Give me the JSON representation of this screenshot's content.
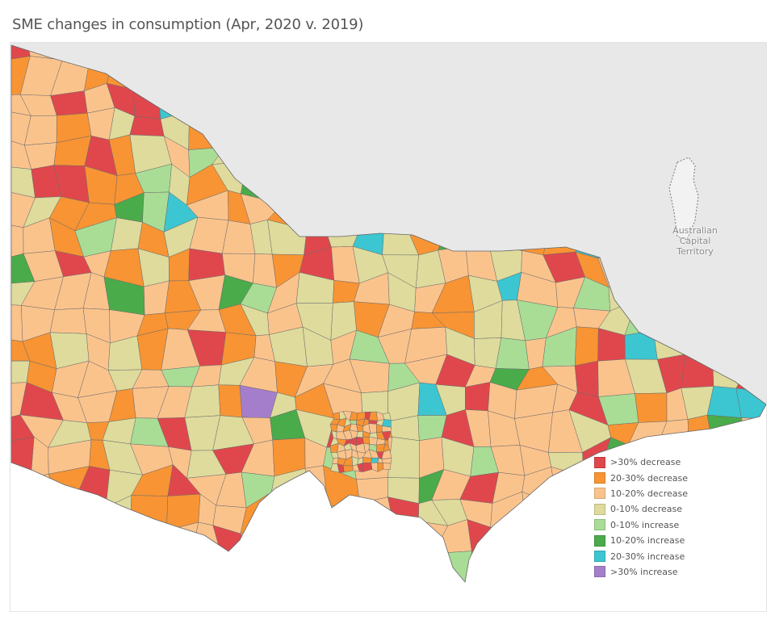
{
  "title": "SME changes in consumption (Apr, 2020 v. 2019)",
  "map": {
    "region_label": "Australian Capital Territory",
    "land_color": "#e8e8e8",
    "sea_color": "#ffffff"
  },
  "legend": {
    "items": [
      {
        "label": ">30% decrease",
        "color": "#e0474c"
      },
      {
        "label": "20-30% decrease",
        "color": "#f89433"
      },
      {
        "label": "10-20% decrease",
        "color": "#fbc38c"
      },
      {
        "label": "0-10% decrease",
        "color": "#dedb9c"
      },
      {
        "label": "0-10% increase",
        "color": "#a9dd96"
      },
      {
        "label": "10-20% increase",
        "color": "#4aab4a"
      },
      {
        "label": "20-30% increase",
        "color": "#3cc6d1"
      },
      {
        "label": ">30% increase",
        "color": "#a57ecb"
      }
    ]
  }
}
